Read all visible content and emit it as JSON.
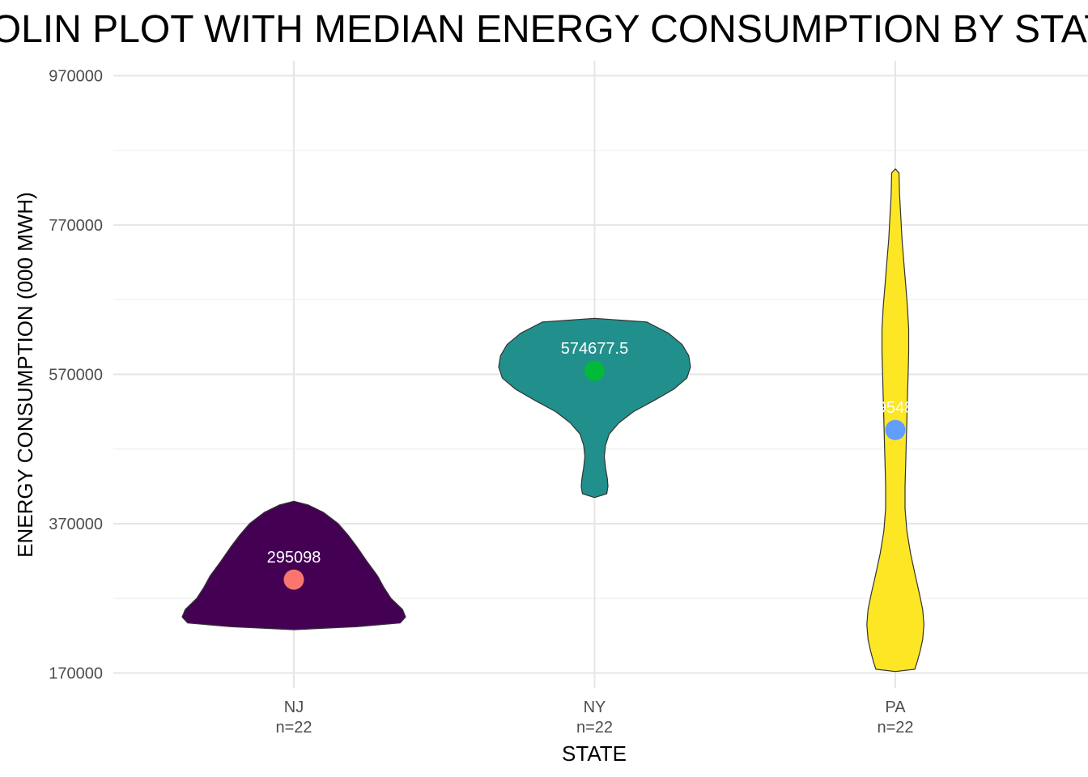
{
  "chart_data": {
    "type": "violin",
    "title": "VIOLIN PLOT WITH MEDIAN ENERGY CONSUMPTION BY STATE",
    "xlabel": "STATE",
    "ylabel": "ENERGY CONSUMPTION (000 MWH)",
    "ylim": [
      150000,
      990000
    ],
    "yticks": [
      170000,
      370000,
      570000,
      770000,
      970000
    ],
    "ytick_labels": [
      "170000",
      "370000",
      "570000",
      "770000",
      "970000"
    ],
    "grid": true,
    "categories": [
      {
        "state": "NJ",
        "n_label": "n=22",
        "median": 295098,
        "median_label": "295098",
        "fill": "#440154",
        "median_color": "#F8766D",
        "density": [
          [
            228000,
            0.0
          ],
          [
            232000,
            0.52
          ],
          [
            237000,
            0.875
          ],
          [
            245000,
            0.92
          ],
          [
            255000,
            0.895
          ],
          [
            270000,
            0.8
          ],
          [
            285000,
            0.74
          ],
          [
            300000,
            0.69
          ],
          [
            320000,
            0.6
          ],
          [
            340000,
            0.515
          ],
          [
            355000,
            0.445
          ],
          [
            370000,
            0.365
          ],
          [
            385000,
            0.245
          ],
          [
            395000,
            0.12
          ],
          [
            400000,
            0.0
          ]
        ]
      },
      {
        "state": "NY",
        "n_label": "n=22",
        "median": 574677.5,
        "median_label": "574677.5",
        "fill": "#21908C",
        "median_color": "#00BA38",
        "density": [
          [
            405000,
            0.0
          ],
          [
            410000,
            0.1
          ],
          [
            420000,
            0.11
          ],
          [
            430000,
            0.105
          ],
          [
            445000,
            0.09
          ],
          [
            460000,
            0.08
          ],
          [
            475000,
            0.09
          ],
          [
            490000,
            0.12
          ],
          [
            505000,
            0.2
          ],
          [
            520000,
            0.32
          ],
          [
            535000,
            0.49
          ],
          [
            550000,
            0.65
          ],
          [
            565000,
            0.76
          ],
          [
            580000,
            0.79
          ],
          [
            595000,
            0.775
          ],
          [
            610000,
            0.72
          ],
          [
            625000,
            0.61
          ],
          [
            640000,
            0.43
          ],
          [
            645000,
            0.0
          ]
        ]
      },
      {
        "state": "PA",
        "n_label": "n=22",
        "median": 495487,
        "median_label": "495487",
        "fill": "#FDE725",
        "median_color": "#619CFF",
        "density": [
          [
            172000,
            0.0
          ],
          [
            175000,
            0.16
          ],
          [
            185000,
            0.18
          ],
          [
            200000,
            0.205
          ],
          [
            215000,
            0.225
          ],
          [
            235000,
            0.235
          ],
          [
            255000,
            0.225
          ],
          [
            275000,
            0.2
          ],
          [
            300000,
            0.165
          ],
          [
            330000,
            0.125
          ],
          [
            360000,
            0.095
          ],
          [
            390000,
            0.08
          ],
          [
            420000,
            0.08
          ],
          [
            450000,
            0.085
          ],
          [
            480000,
            0.09
          ],
          [
            510000,
            0.095
          ],
          [
            540000,
            0.1
          ],
          [
            570000,
            0.105
          ],
          [
            600000,
            0.11
          ],
          [
            630000,
            0.11
          ],
          [
            660000,
            0.1
          ],
          [
            690000,
            0.085
          ],
          [
            720000,
            0.07
          ],
          [
            750000,
            0.055
          ],
          [
            780000,
            0.045
          ],
          [
            810000,
            0.035
          ],
          [
            840000,
            0.03
          ],
          [
            845000,
            0.0
          ]
        ]
      }
    ]
  }
}
